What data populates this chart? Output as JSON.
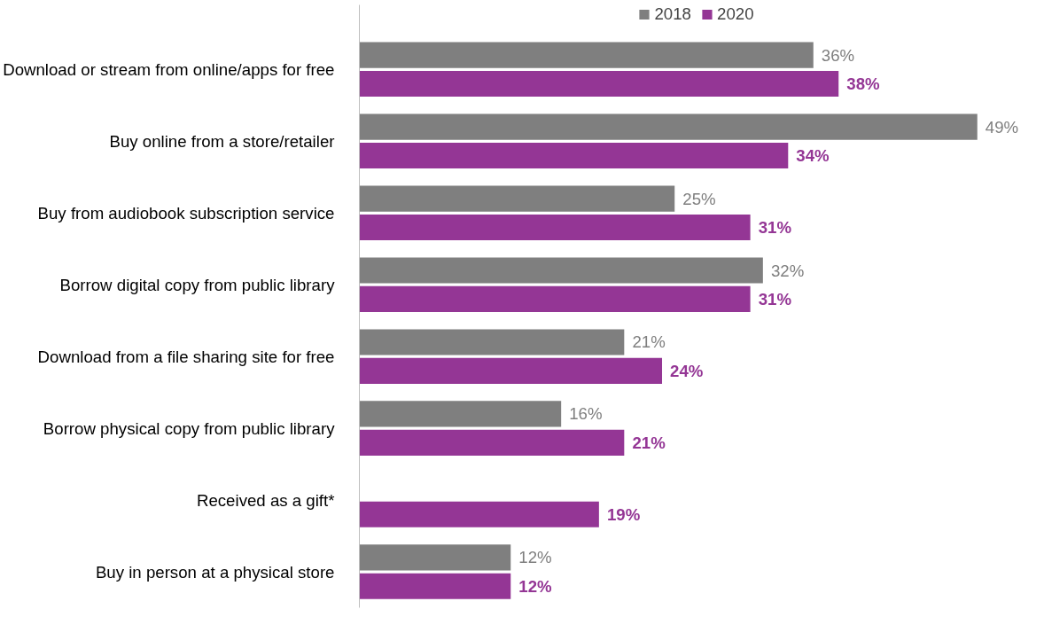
{
  "chart_data": {
    "type": "bar",
    "orientation": "horizontal",
    "legend": "top",
    "categories": [
      "Download or stream from online/apps for free",
      "Buy online from a store/retailer",
      "Buy from audiobook subscription service",
      "Borrow digital copy from public library",
      "Download from a file sharing site for free",
      "Borrow physical copy from public library",
      "Received as a gift*",
      "Buy in person at a physical store"
    ],
    "series": [
      {
        "name": "2018",
        "color": "#7f7f7f",
        "values": [
          36,
          49,
          25,
          32,
          21,
          16,
          null,
          12
        ],
        "value_labels": [
          "36%",
          "49%",
          "25%",
          "32%",
          "21%",
          "16%",
          null,
          "12%"
        ]
      },
      {
        "name": "2020",
        "color": "#943695",
        "values": [
          38,
          34,
          31,
          31,
          24,
          21,
          19,
          12
        ],
        "value_labels": [
          "38%",
          "34%",
          "31%",
          "31%",
          "24%",
          "21%",
          "19%",
          "12%"
        ]
      }
    ]
  }
}
